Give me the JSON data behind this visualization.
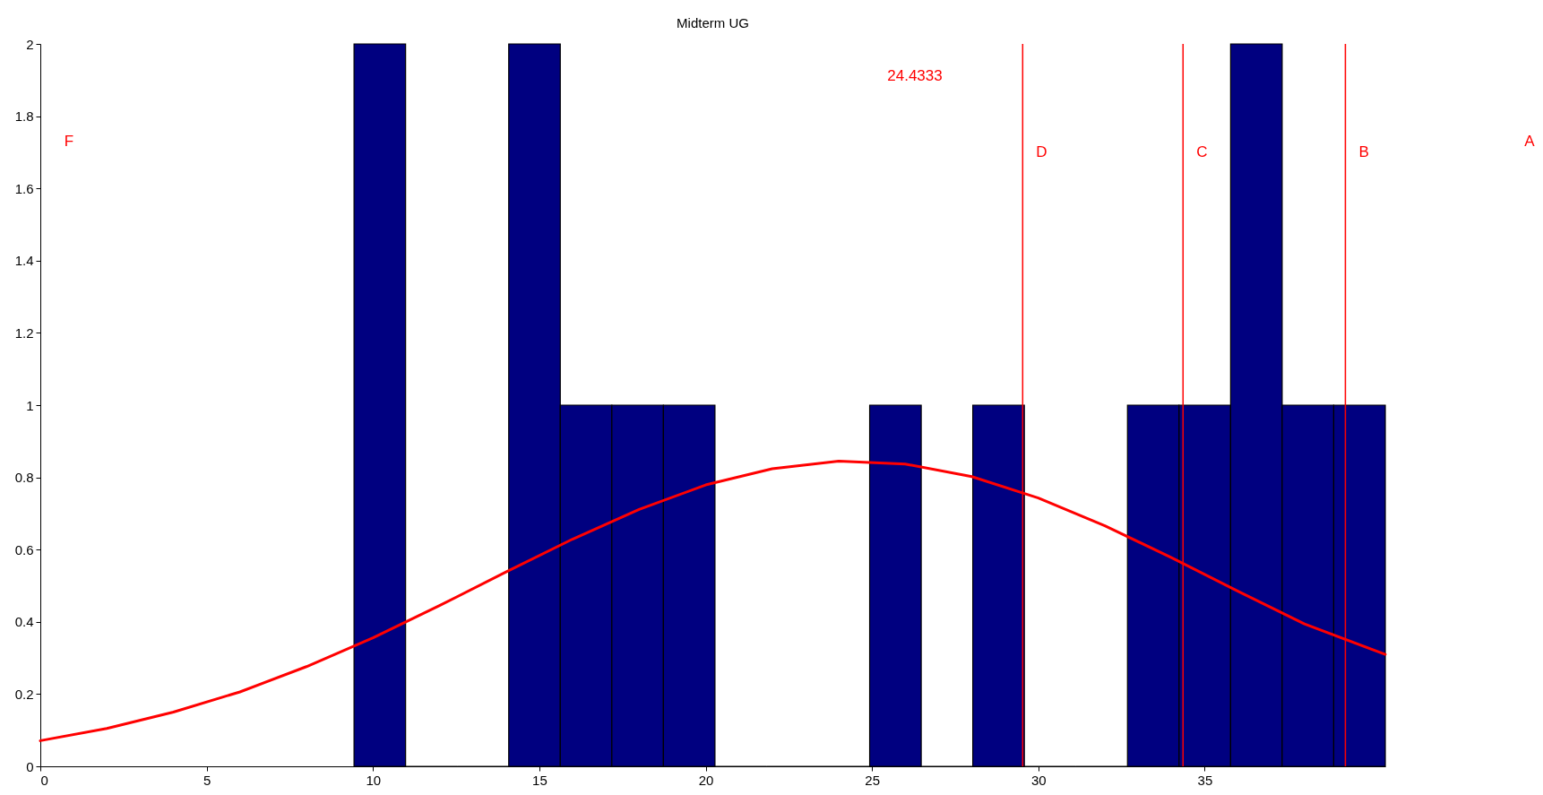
{
  "chart_data": {
    "type": "histogram",
    "title": "Midterm UG",
    "bins": [
      9.43,
      10.98,
      12.53,
      14.08,
      15.63,
      17.18,
      18.73,
      20.28,
      21.83,
      23.38,
      24.93,
      26.48,
      28.03,
      29.58,
      31.13,
      32.68,
      34.23,
      35.78,
      37.33,
      38.88,
      40.43
    ],
    "values": [
      2,
      0,
      0,
      2,
      1,
      1,
      1,
      0,
      0,
      0,
      1,
      0,
      1,
      0,
      0,
      1,
      1,
      2,
      1,
      1
    ],
    "color": "#000080",
    "series": [
      {
        "type": "line",
        "color": "#ff0000",
        "x": [
          0,
          2,
          4,
          6,
          8,
          10,
          12,
          14,
          16,
          18,
          20,
          22,
          24,
          26,
          28,
          30,
          32,
          34,
          36,
          38,
          40.43
        ],
        "values": [
          0.071,
          0.105,
          0.15,
          0.206,
          0.276,
          0.356,
          0.445,
          0.538,
          0.629,
          0.711,
          0.779,
          0.824,
          0.845,
          0.837,
          0.802,
          0.743,
          0.666,
          0.578,
          0.485,
          0.394,
          0.31
        ]
      }
    ],
    "ref_lines": [
      {
        "axis": "x",
        "value": 29.53,
        "label": "D",
        "color": "#ff0000"
      },
      {
        "axis": "x",
        "value": 34.35,
        "label": "C",
        "color": "#ff0000"
      },
      {
        "axis": "x",
        "value": 39.23,
        "label": "B",
        "color": "#ff0000"
      }
    ],
    "annotations": [
      "F",
      "24.4333",
      "A"
    ],
    "xlim": [
      0,
      40.43
    ],
    "xticks": [
      0,
      5,
      10,
      15,
      20,
      25,
      30,
      35
    ],
    "ylim": [
      0,
      2
    ],
    "yticks": [
      0,
      0.2,
      0.4,
      0.6,
      0.8,
      1,
      1.2,
      1.4,
      1.6,
      1.8,
      2
    ],
    "grid": false
  }
}
